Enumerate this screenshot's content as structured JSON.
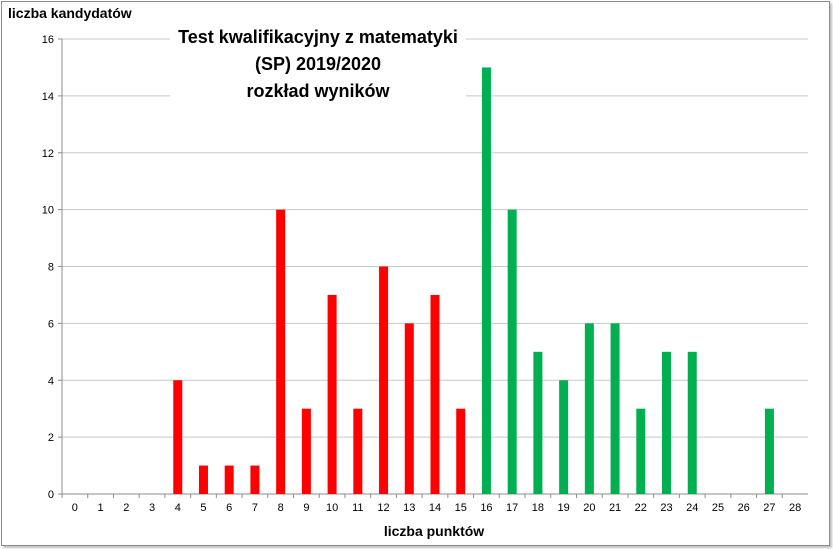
{
  "chart_data": {
    "type": "bar",
    "title": [
      "Test kwalifikacyjny  z matematyki",
      "(SP) 2019/2020",
      "rozkład wyników"
    ],
    "xlabel": "liczba punktów",
    "ylabel": "liczba kandydatów",
    "categories": [
      "0",
      "1",
      "2",
      "3",
      "4",
      "5",
      "6",
      "7",
      "8",
      "9",
      "10",
      "11",
      "12",
      "13",
      "14",
      "15",
      "16",
      "17",
      "18",
      "19",
      "20",
      "21",
      "22",
      "23",
      "24",
      "25",
      "26",
      "27",
      "28"
    ],
    "values": [
      0,
      0,
      0,
      0,
      4,
      1,
      1,
      1,
      10,
      3,
      7,
      3,
      8,
      6,
      7,
      3,
      15,
      10,
      5,
      4,
      6,
      6,
      3,
      5,
      5,
      0,
      0,
      3,
      0
    ],
    "colors": [
      "#ff0000",
      "#ff0000",
      "#ff0000",
      "#ff0000",
      "#ff0000",
      "#ff0000",
      "#ff0000",
      "#ff0000",
      "#ff0000",
      "#ff0000",
      "#ff0000",
      "#ff0000",
      "#ff0000",
      "#ff0000",
      "#ff0000",
      "#ff0000",
      "#00b050",
      "#00b050",
      "#00b050",
      "#00b050",
      "#00b050",
      "#00b050",
      "#00b050",
      "#00b050",
      "#00b050",
      "#00b050",
      "#00b050",
      "#00b050",
      "#00b050"
    ],
    "ylim": [
      0,
      16
    ],
    "yticks": [
      "0",
      "2",
      "4",
      "6",
      "8",
      "10",
      "12",
      "14",
      "16"
    ],
    "grid": true,
    "legend": "none"
  }
}
